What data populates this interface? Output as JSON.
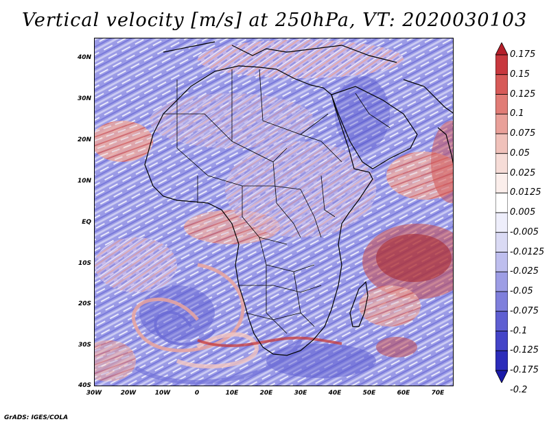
{
  "title": "Vertical velocity [m/s] at 250hPa, VT: 2020030103",
  "credit": "GrADS: IGES/COLA",
  "map": {
    "lat_labels": [
      "40N",
      "30N",
      "20N",
      "10N",
      "EQ",
      "10S",
      "20S",
      "30S",
      "40S"
    ],
    "lon_labels": [
      "30W",
      "20W",
      "10W",
      "0",
      "10E",
      "20E",
      "30E",
      "40E",
      "50E",
      "60E",
      "70E"
    ]
  },
  "colorbar": {
    "labels": [
      "0.175",
      "0.15",
      "0.125",
      "0.1",
      "0.075",
      "0.05",
      "0.025",
      "0.0125",
      "0.005",
      "-0.005",
      "-0.0125",
      "-0.025",
      "-0.05",
      "-0.075",
      "-0.1",
      "-0.125",
      "-0.175",
      "-0.2"
    ],
    "colors": [
      "#b51f2a",
      "#c8383e",
      "#d75a58",
      "#e17c76",
      "#e9a099",
      "#f0c1ba",
      "#f6dcd7",
      "#fbeeeb",
      "#ffffff",
      "#eeeefb",
      "#dadaf4",
      "#bebeee",
      "#9d9de5",
      "#7f7fdc",
      "#5f5fd2",
      "#4444c8",
      "#2c2cba",
      "#1a1aa8"
    ]
  }
}
